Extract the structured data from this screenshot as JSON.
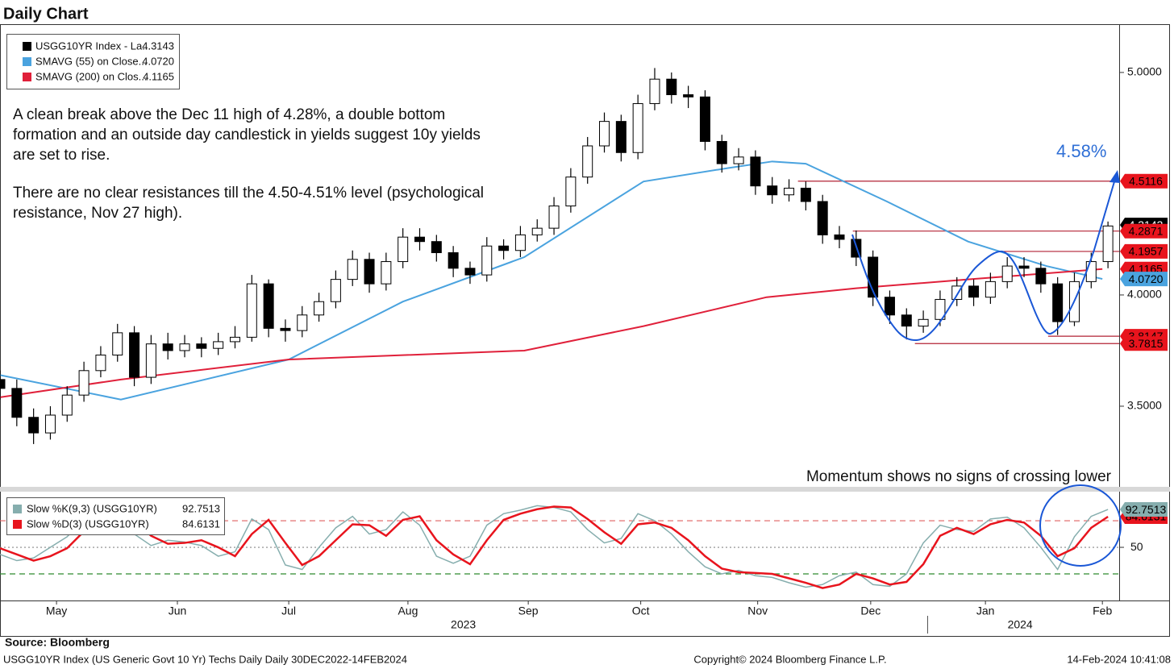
{
  "chart_data": [
    {
      "type": "candlestick",
      "title": "Daily Chart",
      "annotations": [
        "A clean break above the Dec 11 high of 4.28%, a double bottom",
        "formation and an outside day candlestick in yields suggest 10y yields",
        "are set to rise.",
        "There are no clear resistances till the 4.50-4.51% level (psychological",
        "resistance, Nov 27 high)."
      ],
      "target_label": "4.58%",
      "momentum_note": "Momentum shows no signs of crossing lower",
      "xlim": [
        0,
        200
      ],
      "xticks": [
        {
          "value": 10.1,
          "label": "May"
        },
        {
          "value": 31.7,
          "label": "Jun"
        },
        {
          "value": 51.6,
          "label": "Jul"
        },
        {
          "value": 72.9,
          "label": "Aug"
        },
        {
          "value": 94.4,
          "label": "Sep"
        },
        {
          "value": 114.5,
          "label": "Oct"
        },
        {
          "value": 135.4,
          "label": "Nov"
        },
        {
          "value": 155.6,
          "label": "Dec"
        },
        {
          "value": 176.1,
          "label": "Jan"
        },
        {
          "value": 197,
          "label": "Feb"
        }
      ],
      "years": [
        {
          "value": 82.8,
          "label": "2023"
        },
        {
          "value": 182.3,
          "label": "2024"
        }
      ],
      "ylim": [
        3.134,
        5.217
      ],
      "yticks": [
        {
          "value": 3.5,
          "label": "3.5000"
        },
        {
          "value": 4,
          "label": "4.0000"
        },
        {
          "value": 5,
          "label": "5.0000"
        }
      ],
      "up_color": "#ffffff",
      "down_color": "#000000",
      "candles": {
        "x": [
          0,
          3,
          6,
          9,
          12,
          15,
          18,
          21,
          24,
          27,
          30,
          33,
          36,
          39,
          42,
          45,
          48,
          51,
          54,
          57,
          60,
          63,
          66,
          69,
          72,
          75,
          78,
          81,
          84,
          87,
          90,
          93,
          96,
          99,
          102,
          105,
          108,
          111,
          114,
          117,
          120,
          123,
          126,
          129,
          132,
          135,
          138,
          141,
          144,
          147,
          150,
          153,
          156,
          159,
          162,
          165,
          168,
          171,
          174,
          177,
          180,
          183,
          186,
          189,
          192,
          195,
          198
        ],
        "open": [
          3.62,
          3.58,
          3.45,
          3.38,
          3.46,
          3.55,
          3.66,
          3.73,
          3.83,
          3.63,
          3.78,
          3.75,
          3.78,
          3.76,
          3.79,
          3.81,
          4.05,
          3.85,
          3.84,
          3.91,
          3.97,
          4.07,
          4.16,
          4.05,
          4.15,
          4.26,
          4.24,
          4.19,
          4.12,
          4.09,
          4.22,
          4.2,
          4.27,
          4.3,
          4.4,
          4.53,
          4.67,
          4.78,
          4.64,
          4.86,
          4.97,
          4.9,
          4.89,
          4.69,
          4.59,
          4.62,
          4.49,
          4.45,
          4.48,
          4.42,
          4.27,
          4.25,
          4.17,
          3.99,
          3.91,
          3.86,
          3.89,
          3.98,
          4.04,
          3.99,
          4.06,
          4.13,
          4.12,
          4.05,
          3.88,
          4.06,
          4.15
        ],
        "high": [
          3.66,
          3.62,
          3.49,
          3.5,
          3.59,
          3.7,
          3.77,
          3.87,
          3.86,
          3.82,
          3.83,
          3.82,
          3.81,
          3.83,
          3.86,
          4.09,
          4.07,
          3.89,
          3.95,
          4.01,
          4.11,
          4.2,
          4.19,
          4.19,
          4.3,
          4.3,
          4.27,
          4.22,
          4.15,
          4.26,
          4.25,
          4.31,
          4.34,
          4.44,
          4.57,
          4.71,
          4.82,
          4.81,
          4.9,
          5.02,
          5.0,
          4.94,
          4.92,
          4.72,
          4.66,
          4.65,
          4.53,
          4.52,
          4.51,
          4.45,
          4.31,
          4.29,
          4.2,
          4.02,
          3.94,
          3.93,
          4.02,
          4.08,
          4.07,
          4.1,
          4.17,
          4.17,
          4.15,
          4.08,
          4.1,
          4.19,
          4.33
        ],
        "low": [
          3.53,
          3.41,
          3.33,
          3.35,
          3.43,
          3.52,
          3.63,
          3.7,
          3.59,
          3.6,
          3.71,
          3.72,
          3.72,
          3.73,
          3.76,
          3.79,
          3.81,
          3.79,
          3.81,
          3.88,
          3.94,
          4.04,
          4.01,
          4.02,
          4.12,
          4.2,
          4.15,
          4.08,
          4.05,
          4.06,
          4.16,
          4.17,
          4.24,
          4.27,
          4.37,
          4.5,
          4.64,
          4.6,
          4.61,
          4.83,
          4.86,
          4.84,
          4.65,
          4.55,
          4.56,
          4.45,
          4.41,
          4.42,
          4.38,
          4.23,
          4.21,
          4.13,
          3.95,
          3.87,
          3.8,
          3.83,
          3.86,
          3.95,
          3.95,
          3.96,
          4.03,
          4.08,
          4.01,
          3.82,
          3.86,
          4.03,
          4.12
        ],
        "close": [
          3.58,
          3.45,
          3.38,
          3.46,
          3.55,
          3.66,
          3.73,
          3.83,
          3.63,
          3.78,
          3.75,
          3.78,
          3.76,
          3.79,
          3.81,
          4.05,
          3.85,
          3.84,
          3.91,
          3.97,
          4.07,
          4.16,
          4.05,
          4.15,
          4.26,
          4.24,
          4.19,
          4.12,
          4.09,
          4.22,
          4.2,
          4.27,
          4.3,
          4.4,
          4.53,
          4.67,
          4.78,
          4.64,
          4.86,
          4.97,
          4.9,
          4.89,
          4.69,
          4.59,
          4.62,
          4.49,
          4.45,
          4.48,
          4.42,
          4.27,
          4.25,
          4.17,
          3.99,
          3.91,
          3.86,
          3.89,
          3.98,
          4.04,
          3.99,
          4.06,
          4.13,
          4.12,
          4.05,
          3.88,
          4.06,
          4.15,
          4.31
        ]
      },
      "series": [
        {
          "name": "SMAVG (55)  on Close...",
          "color": "#4aa3df",
          "x": [
            0,
            21.6,
            51.6,
            72,
            93.7,
            115,
            130,
            138,
            144,
            158.5,
            173,
            187,
            197
          ],
          "values": [
            3.64,
            3.53,
            3.71,
            3.97,
            4.17,
            4.51,
            4.57,
            4.6,
            4.59,
            4.42,
            4.24,
            4.13,
            4.072
          ]
        },
        {
          "name": "SMAVG (200)  on Clos...",
          "color": "#e0203a",
          "x": [
            0,
            21.6,
            51.6,
            93.7,
            115,
            137,
            153,
            173,
            197
          ],
          "values": [
            3.54,
            3.62,
            3.71,
            3.75,
            3.86,
            3.99,
            4.03,
            4.07,
            4.1165
          ]
        }
      ],
      "legend": [
        {
          "name": "USGG10YR Index - La...",
          "color": "#000000",
          "value": {
            "value": 4.3143,
            "label": "4.3143"
          }
        },
        {
          "name": "SMAVG (55)  on Close...",
          "color": "#4aa3df",
          "value": {
            "value": 4.072,
            "label": "4.0720"
          }
        },
        {
          "name": "SMAVG (200)  on Clos...",
          "color": "#e0203a",
          "value": {
            "value": 4.1165,
            "label": "4.1165"
          }
        }
      ],
      "levels": [
        {
          "value": 4.5116,
          "x_start": 142.6
        },
        {
          "value": 4.2871,
          "x_start": 152.4
        },
        {
          "value": 4.1957,
          "x_start": 178.7
        },
        {
          "value": 3.8147,
          "x_start": 187.3
        },
        {
          "value": 3.7815,
          "x_start": 163.5
        }
      ],
      "level_color": "#b22234",
      "price_tags": [
        {
          "value": 4.3143,
          "label": "4.3143",
          "color": "#000000"
        },
        {
          "value": 4.5116,
          "label": "4.5116",
          "color": "#e8141d"
        },
        {
          "value": 4.2871,
          "label": "4.2871",
          "color": "#e8141d"
        },
        {
          "value": 4.1165,
          "label": "4.1165",
          "color": "#e8141d"
        },
        {
          "value": 4.1957,
          "label": "4.1957",
          "color": "#e8141d"
        },
        {
          "value": 4.072,
          "label": "4.0720",
          "color": "#4aa3df"
        },
        {
          "value": 3.8147,
          "label": "3.8147",
          "color": "#e8141d"
        },
        {
          "value": 3.7815,
          "label": "3.7815",
          "color": "#e8141d"
        }
      ]
    },
    {
      "type": "line",
      "xlim": [
        0,
        200
      ],
      "ylim": [
        -10,
        111
      ],
      "yticks": [
        50
      ],
      "ref_lines": [
        {
          "value": 80,
          "color": "#e06060",
          "style": "dashed"
        },
        {
          "value": 50,
          "color": "#888888",
          "style": "dotted"
        },
        {
          "value": 20,
          "color": "#2e8b2e",
          "style": "dashed"
        }
      ],
      "x": [
        0,
        3,
        6,
        9,
        12,
        15,
        18,
        21,
        24,
        27,
        30,
        33,
        36,
        39,
        42,
        45,
        48,
        51,
        54,
        57,
        60,
        63,
        66,
        69,
        72,
        75,
        78,
        81,
        84,
        87,
        90,
        93,
        96,
        99,
        102,
        105,
        108,
        111,
        114,
        117,
        120,
        123,
        126,
        129,
        132,
        135,
        138,
        141,
        144,
        147,
        150,
        153,
        156,
        159,
        162,
        165,
        168,
        171,
        174,
        177,
        180,
        183,
        186,
        189,
        192,
        195,
        198
      ],
      "series": [
        {
          "name": "Slow %K(9,3) (USGG10YR)",
          "color": "#86aeae",
          "width": 1.5,
          "values": [
            42,
            35,
            38,
            50,
            62,
            82,
            95,
            92,
            65,
            52,
            58,
            56,
            52,
            40,
            45,
            82,
            70,
            30,
            25,
            50,
            72,
            85,
            65,
            70,
            90,
            75,
            40,
            32,
            40,
            75,
            88,
            92,
            97,
            95,
            90,
            70,
            55,
            60,
            88,
            80,
            65,
            45,
            28,
            20,
            24,
            18,
            16,
            10,
            5,
            8,
            18,
            22,
            8,
            6,
            20,
            55,
            75,
            70,
            68,
            82,
            84,
            72,
            50,
            25,
            62,
            85,
            92.7513
          ]
        },
        {
          "name": "Slow %D(3) (USGG10YR)",
          "color": "#e8141d",
          "width": 2.5,
          "values": [
            49,
            42,
            35,
            40,
            49,
            68,
            85,
            95,
            80,
            63,
            54,
            55,
            58,
            50,
            40,
            65,
            81,
            55,
            30,
            40,
            58,
            76,
            75,
            63,
            81,
            85,
            58,
            42,
            31,
            58,
            81,
            88,
            93,
            96,
            95,
            82,
            67,
            54,
            76,
            78,
            72,
            58,
            40,
            26,
            22,
            21,
            20,
            15,
            10,
            4,
            8,
            20,
            15,
            8,
            11,
            31,
            63,
            72,
            65,
            76,
            81,
            78,
            63,
            40,
            49,
            72,
            84.6131
          ]
        }
      ]
    }
  ],
  "footer": {
    "source": "Source:  Bloomberg",
    "description": "USGG10YR Index (US Generic Govt 10 Yr) Techs Daily  Daily 30DEC2022-14FEB2024",
    "copyright": "Copyright© 2024 Bloomberg Finance L.P.",
    "timestamp": "14-Feb-2024 10:41:08"
  }
}
